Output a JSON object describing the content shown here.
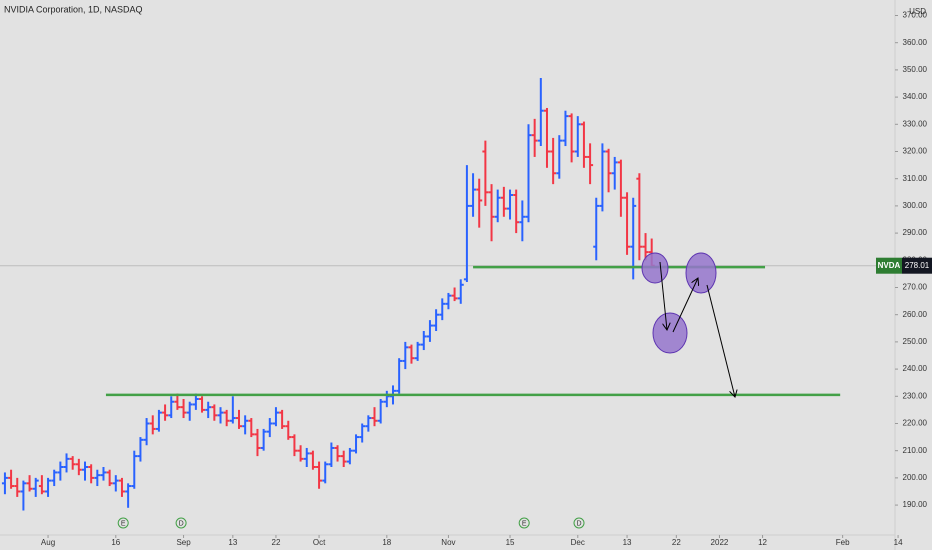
{
  "chart_data": {
    "type": "ohlc",
    "title": "NVIDIA Corporation, 1D, NASDAQ",
    "currency": "USD",
    "symbol": "NVDA",
    "last_price": 278.01,
    "up_color": "#2962ff",
    "down_color": "#f23645",
    "x": [
      -7,
      -6,
      -5,
      -4,
      -3,
      -2,
      -1,
      0,
      1,
      2,
      3,
      4,
      5,
      6,
      7,
      8,
      9,
      10,
      11,
      12,
      13,
      14,
      15,
      16,
      17,
      18,
      19,
      20,
      21,
      22,
      23,
      24,
      25,
      26,
      27,
      28,
      29,
      30,
      31,
      32,
      33,
      34,
      35,
      36,
      37,
      38,
      39,
      40,
      41,
      42,
      43,
      44,
      45,
      46,
      47,
      48,
      49,
      50,
      51,
      52,
      53,
      54,
      55,
      56,
      57,
      58,
      59,
      60,
      61,
      62,
      63,
      64,
      65,
      66,
      67,
      68,
      69,
      70,
      71,
      72,
      73,
      74,
      75,
      76,
      77,
      78,
      79,
      80,
      81,
      82,
      83,
      84,
      85,
      86,
      87,
      88,
      89,
      90,
      91,
      92,
      93,
      94,
      95,
      96,
      97,
      98
    ],
    "open": [
      198,
      200,
      197,
      195,
      198,
      196,
      197,
      195,
      199,
      202,
      204,
      207,
      205,
      203,
      204,
      200,
      201,
      202,
      198,
      199,
      195,
      197,
      208,
      214,
      220,
      218,
      224,
      223,
      228,
      226,
      224,
      227,
      229,
      225,
      226,
      223,
      224,
      221,
      222,
      219,
      221,
      216,
      211,
      217,
      220,
      224,
      219,
      215,
      210,
      207,
      209,
      204,
      199,
      205,
      211,
      208,
      206,
      210,
      215,
      219,
      222,
      221,
      228,
      230,
      232,
      243,
      248,
      244,
      249,
      252,
      256,
      260,
      264,
      267,
      266,
      273,
      300,
      306,
      320,
      305,
      296,
      303,
      299,
      304,
      294,
      296,
      326,
      324,
      335,
      320,
      312,
      324,
      333,
      320,
      330,
      318,
      285,
      300,
      320,
      312,
      316,
      303,
      285,
      310,
      285,
      283
    ],
    "high": [
      202,
      203,
      200,
      199,
      201,
      200,
      201,
      200,
      203,
      206,
      209,
      208,
      207,
      206,
      205,
      203,
      204,
      203,
      201,
      200,
      198,
      210,
      215,
      222,
      223,
      225,
      227,
      230,
      231,
      229,
      228,
      231,
      230,
      228,
      227,
      226,
      225,
      230,
      225,
      223,
      222,
      218,
      218,
      222,
      226,
      225,
      221,
      216,
      212,
      211,
      210,
      206,
      206,
      213,
      212,
      210,
      211,
      216,
      220,
      223,
      226,
      229,
      232,
      234,
      244,
      250,
      249,
      250,
      254,
      258,
      262,
      266,
      268,
      270,
      273,
      315,
      312,
      310,
      324,
      308,
      306,
      307,
      306,
      306,
      302,
      330,
      332,
      347,
      336,
      325,
      326,
      335,
      334,
      333,
      331,
      323,
      303,
      323,
      321,
      318,
      317,
      305,
      303,
      312,
      290,
      288
    ],
    "low": [
      194,
      196,
      193,
      188,
      195,
      193,
      194,
      193,
      197,
      199,
      202,
      203,
      201,
      199,
      198,
      197,
      199,
      197,
      195,
      193,
      189,
      196,
      206,
      212,
      216,
      217,
      221,
      222,
      225,
      222,
      221,
      225,
      224,
      222,
      221,
      220,
      219,
      220,
      218,
      216,
      215,
      208,
      210,
      215,
      219,
      218,
      214,
      208,
      206,
      204,
      203,
      196,
      198,
      204,
      206,
      204,
      205,
      209,
      213,
      217,
      219,
      220,
      226,
      227,
      231,
      240,
      242,
      243,
      247,
      250,
      254,
      258,
      262,
      265,
      264,
      272,
      296,
      292,
      300,
      287,
      294,
      296,
      295,
      290,
      287,
      294,
      318,
      322,
      314,
      308,
      310,
      322,
      316,
      318,
      314,
      308,
      280,
      298,
      305,
      306,
      296,
      282,
      273,
      280,
      280,
      278
    ],
    "close": [
      200,
      197,
      195,
      198,
      196,
      199,
      195,
      199,
      202,
      204,
      207,
      205,
      203,
      204,
      200,
      201,
      202,
      198,
      199,
      195,
      197,
      208,
      214,
      220,
      218,
      224,
      223,
      228,
      226,
      224,
      227,
      229,
      225,
      226,
      223,
      224,
      221,
      222,
      219,
      221,
      216,
      211,
      217,
      220,
      224,
      219,
      215,
      210,
      207,
      209,
      204,
      199,
      205,
      211,
      208,
      206,
      210,
      215,
      219,
      222,
      221,
      228,
      230,
      232,
      243,
      248,
      244,
      249,
      252,
      256,
      260,
      264,
      267,
      266,
      271,
      300,
      306,
      302,
      305,
      296,
      303,
      299,
      304,
      294,
      296,
      326,
      324,
      335,
      320,
      312,
      324,
      333,
      320,
      330,
      318,
      315,
      300,
      320,
      312,
      316,
      303,
      285,
      300,
      285,
      283,
      278.01
    ],
    "xlim": [
      -7.8,
      137.5
    ],
    "xticks": [
      {
        "value": 0,
        "label": "Aug"
      },
      {
        "value": 11,
        "label": "16"
      },
      {
        "value": 22,
        "label": "Sep"
      },
      {
        "value": 30,
        "label": "13"
      },
      {
        "value": 37,
        "label": "22"
      },
      {
        "value": 44,
        "label": "Oct"
      },
      {
        "value": 55,
        "label": "18"
      },
      {
        "value": 65,
        "label": "Nov"
      },
      {
        "value": 75,
        "label": "15"
      },
      {
        "value": 86,
        "label": "Dec"
      },
      {
        "value": 94,
        "label": "13"
      },
      {
        "value": 102,
        "label": "22"
      },
      {
        "value": 109,
        "label": "2022"
      },
      {
        "value": 116,
        "label": "12"
      },
      {
        "value": 129,
        "label": "Feb"
      },
      {
        "value": 138,
        "label": "14"
      }
    ],
    "ylim": [
      179,
      375.7
    ],
    "yticks": [
      {
        "value": 190,
        "label": "190.00"
      },
      {
        "value": 200,
        "label": "200.00"
      },
      {
        "value": 210,
        "label": "210.00"
      },
      {
        "value": 220,
        "label": "220.00"
      },
      {
        "value": 230,
        "label": "230.00"
      },
      {
        "value": 240,
        "label": "240.00"
      },
      {
        "value": 250,
        "label": "250.00"
      },
      {
        "value": 260,
        "label": "260.00"
      },
      {
        "value": 270,
        "label": "270.00"
      },
      {
        "value": 280,
        "label": "280.00"
      },
      {
        "value": 290,
        "label": "290.00"
      },
      {
        "value": 300,
        "label": "300.00"
      },
      {
        "value": 310,
        "label": "310.00"
      },
      {
        "value": 320,
        "label": "320.00"
      },
      {
        "value": 330,
        "label": "330.00"
      },
      {
        "value": 340,
        "label": "340.00"
      },
      {
        "value": 350,
        "label": "350.00"
      },
      {
        "value": 360,
        "label": "360.00"
      },
      {
        "value": 370,
        "label": "370.00"
      }
    ],
    "levels": [
      {
        "value": 277.5,
        "x": [
          69.0,
          116.4
        ],
        "color": "#43a047"
      },
      {
        "value": 230.5,
        "x": [
          9.4,
          128.6
        ],
        "color": "#43a047"
      }
    ],
    "events": [
      {
        "label": "E",
        "x": 12.2
      },
      {
        "label": "D",
        "x": 21.6
      },
      {
        "label": "E",
        "x": 77.3
      },
      {
        "label": "D",
        "x": 86.2
      }
    ]
  }
}
